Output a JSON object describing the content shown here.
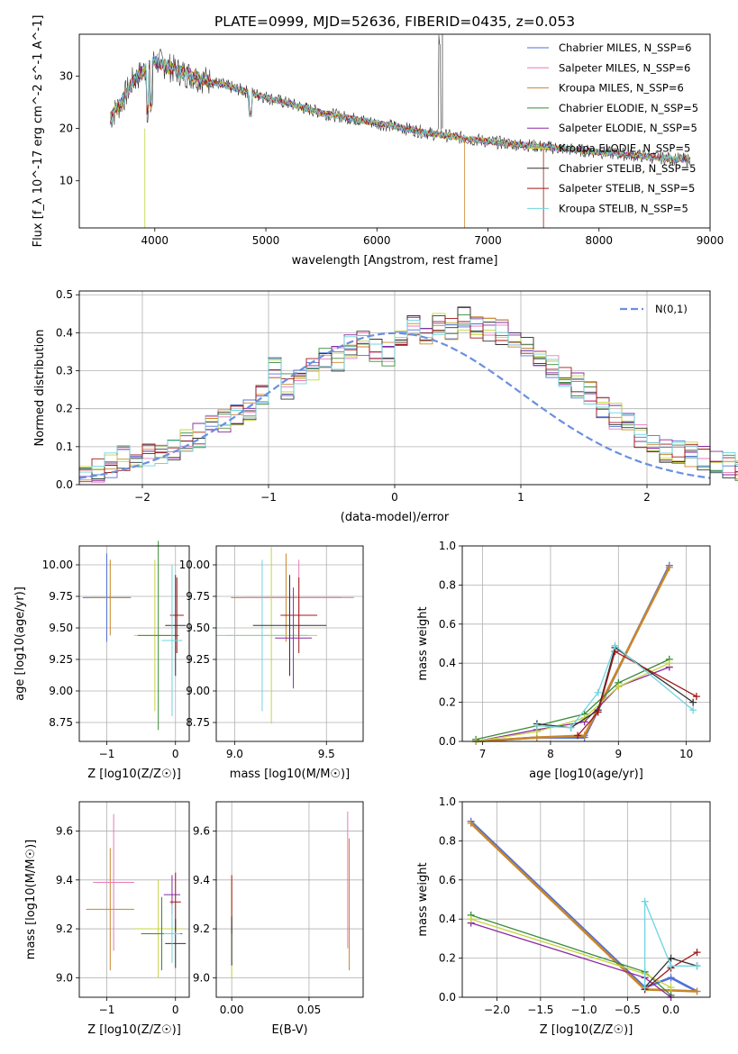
{
  "title": "PLATE=0999, MJD=52636, FIBERID=0435, z=0.053",
  "legend_labels": [
    "Chabrier MILES, N_SSP=6",
    "Salpeter MILES, N_SSP=6",
    "Kroupa MILES, N_SSP=6",
    "Chabrier ELODIE, N_SSP=5",
    "Salpeter ELODIE, N_SSP=5",
    "Kroupa ELODIE, N_SSP=5",
    "Chabrier STELIB, N_SSP=5",
    "Salpeter STELIB, N_SSP=5",
    "Kroupa STELIB, N_SSP=5"
  ],
  "colors": [
    "#4f72d8",
    "#e87ab8",
    "#c9862a",
    "#3a8a3a",
    "#8a2aa0",
    "#c4d440",
    "#333333",
    "#a01818",
    "#6fd4e0"
  ],
  "chart_data": [
    {
      "type": "line",
      "panel": "spectrum",
      "xlabel": "wavelength [Angstrom, rest frame]",
      "ylabel": "Flux [f_λ 10^-17 erg cm^-2 s^-1 A^-1]",
      "xlim": [
        3320,
        9000
      ],
      "ylim": [
        1,
        38
      ],
      "xticks": [
        "4000",
        "5000",
        "6000",
        "7000",
        "8000",
        "9000"
      ],
      "yticks": [
        "10",
        "20",
        "30"
      ],
      "continuum_x": [
        3600,
        3700,
        3800,
        3900,
        4000,
        4200,
        4500,
        5000,
        5500,
        6000,
        6500,
        7000,
        7500,
        8000,
        8500,
        8800
      ],
      "continuum_y": [
        22,
        25,
        29,
        31,
        33,
        31,
        29,
        26,
        23,
        21,
        19,
        17.5,
        16.5,
        15.5,
        14.5,
        14
      ]
    },
    {
      "type": "line",
      "panel": "residual-histogram",
      "xlabel": "(data-model)/error",
      "ylabel": "Normed distribution",
      "xlim": [
        -2.5,
        2.5
      ],
      "ylim": [
        0,
        0.51
      ],
      "xticks": [
        "−2",
        "−1",
        "0",
        "1",
        "2"
      ],
      "yticks": [
        "0.0",
        "0.1",
        "0.2",
        "0.3",
        "0.4",
        "0.5"
      ],
      "gaussian_label": "N(0,1)",
      "bin_width": 0.1,
      "bin_values": [
        0.03,
        0.04,
        0.05,
        0.07,
        0.07,
        0.08,
        0.09,
        0.1,
        0.12,
        0.13,
        0.16,
        0.17,
        0.19,
        0.2,
        0.23,
        0.3,
        0.26,
        0.27,
        0.3,
        0.33,
        0.33,
        0.36,
        0.37,
        0.35,
        0.34,
        0.4,
        0.41,
        0.4,
        0.42,
        0.41,
        0.44,
        0.42,
        0.41,
        0.4,
        0.37,
        0.36,
        0.34,
        0.31,
        0.28,
        0.26,
        0.24,
        0.21,
        0.18,
        0.16,
        0.13,
        0.11,
        0.09,
        0.08,
        0.08,
        0.07,
        0.06,
        0.05,
        0.04,
        0.03,
        0.03
      ]
    },
    {
      "type": "scatter",
      "panel": "age-vs-Z",
      "xlabel": "Z [log10(Z/Z☉)]",
      "ylabel": "age [log10(age/yr)]",
      "xlim": [
        -1.4,
        0.2
      ],
      "ylim": [
        8.6,
        10.15
      ],
      "xticks": [
        "−1",
        "0"
      ],
      "yticks": [
        "8.75",
        "9.00",
        "9.25",
        "9.50",
        "9.75",
        "10.00"
      ],
      "points": [
        {
          "x": -1.0,
          "y": 9.74,
          "xerr": 0.35,
          "yerr": 0.35,
          "color": 0
        },
        {
          "x": -0.95,
          "y": 9.74,
          "xerr": 0.3,
          "yerr": 0.3,
          "color": 2
        },
        {
          "x": -0.3,
          "y": 9.44,
          "xerr": 0.3,
          "yerr": 0.6,
          "color": 5
        },
        {
          "x": -0.25,
          "y": 9.44,
          "xerr": 0.3,
          "yerr": 0.75,
          "color": 3
        },
        {
          "x": 0.0,
          "y": 9.52,
          "xerr": 0.15,
          "yerr": 0.4,
          "color": 6
        },
        {
          "x": 0.02,
          "y": 9.6,
          "xerr": 0.1,
          "yerr": 0.3,
          "color": 7
        },
        {
          "x": -0.05,
          "y": 9.4,
          "xerr": 0.15,
          "yerr": 0.6,
          "color": 8
        }
      ]
    },
    {
      "type": "scatter",
      "panel": "age-vs-mass",
      "xlabel": "mass [log10(M/M☉)]",
      "ylabel": "",
      "xlim": [
        8.9,
        9.7
      ],
      "ylim": [
        8.6,
        10.15
      ],
      "xticks": [
        "9.0",
        "9.5"
      ],
      "yticks": [
        "8.75",
        "9.00",
        "9.25",
        "9.50",
        "9.75",
        "10.00"
      ],
      "points": [
        {
          "x": 9.28,
          "y": 9.74,
          "xerr": 0.3,
          "yerr": 0.35,
          "color": 2
        },
        {
          "x": 9.35,
          "y": 9.74,
          "xerr": 0.3,
          "yerr": 0.3,
          "color": 1
        },
        {
          "x": 9.2,
          "y": 9.44,
          "xerr": 0.25,
          "yerr": 0.7,
          "color": 5
        },
        {
          "x": 9.15,
          "y": 9.44,
          "xerr": 0.25,
          "yerr": 0.6,
          "color": 8
        },
        {
          "x": 9.3,
          "y": 9.52,
          "xerr": 0.2,
          "yerr": 0.4,
          "color": 6
        },
        {
          "x": 9.35,
          "y": 9.6,
          "xerr": 0.1,
          "yerr": 0.3,
          "color": 7
        },
        {
          "x": 9.32,
          "y": 9.42,
          "xerr": 0.1,
          "yerr": 0.4,
          "color": 4
        }
      ]
    },
    {
      "type": "line",
      "panel": "mass-weight-vs-age",
      "xlabel": "age [log10(age/yr)]",
      "ylabel": "mass weight",
      "xlim": [
        6.7,
        10.35
      ],
      "ylim": [
        0,
        1.0
      ],
      "xticks": [
        "7",
        "8",
        "9",
        "10"
      ],
      "yticks": [
        "0.0",
        "0.2",
        "0.4",
        "0.6",
        "0.8",
        "1.0"
      ],
      "series": [
        {
          "color": 0,
          "x": [
            6.9,
            7.8,
            8.5,
            9.75
          ],
          "y": [
            0.0,
            0.02,
            0.02,
            0.9
          ]
        },
        {
          "color": 2,
          "x": [
            6.9,
            7.8,
            8.5,
            9.75
          ],
          "y": [
            0.0,
            0.02,
            0.03,
            0.89
          ]
        },
        {
          "color": 3,
          "x": [
            6.9,
            7.8,
            8.5,
            9.0,
            9.75
          ],
          "y": [
            0.01,
            0.08,
            0.14,
            0.3,
            0.42
          ]
        },
        {
          "color": 4,
          "x": [
            6.9,
            7.8,
            8.5,
            9.0,
            9.75
          ],
          "y": [
            0.0,
            0.06,
            0.1,
            0.28,
            0.38
          ]
        },
        {
          "color": 5,
          "x": [
            6.9,
            7.8,
            8.5,
            9.0,
            9.75
          ],
          "y": [
            0.0,
            0.05,
            0.12,
            0.28,
            0.4
          ]
        },
        {
          "color": 6,
          "x": [
            7.8,
            8.3,
            8.7,
            8.95,
            10.1
          ],
          "y": [
            0.09,
            0.07,
            0.16,
            0.48,
            0.2
          ]
        },
        {
          "color": 7,
          "x": [
            8.4,
            8.7,
            8.95,
            10.15
          ],
          "y": [
            0.03,
            0.15,
            0.46,
            0.23
          ]
        },
        {
          "color": 8,
          "x": [
            7.8,
            8.3,
            8.7,
            8.95,
            10.1
          ],
          "y": [
            0.08,
            0.07,
            0.25,
            0.49,
            0.16
          ]
        }
      ]
    },
    {
      "type": "scatter",
      "panel": "mass-vs-Z",
      "xlabel": "Z [log10(Z/Z☉)]",
      "ylabel": "mass [log10(M/M☉)]",
      "xlim": [
        -1.4,
        0.2
      ],
      "ylim": [
        8.92,
        9.72
      ],
      "xticks": [
        "−1",
        "0"
      ],
      "yticks": [
        "9.0",
        "9.2",
        "9.4",
        "9.6"
      ],
      "points": [
        {
          "x": -0.95,
          "y": 9.28,
          "xerr": 0.35,
          "yerr": 0.25,
          "color": 2
        },
        {
          "x": -0.9,
          "y": 9.39,
          "xerr": 0.3,
          "yerr": 0.28,
          "color": 1
        },
        {
          "x": -0.25,
          "y": 9.2,
          "xerr": 0.35,
          "yerr": 0.2,
          "color": 5
        },
        {
          "x": -0.2,
          "y": 9.18,
          "xerr": 0.3,
          "yerr": 0.15,
          "color": 3
        },
        {
          "x": -0.05,
          "y": 9.34,
          "xerr": 0.12,
          "yerr": 0.08,
          "color": 4
        },
        {
          "x": 0.0,
          "y": 9.31,
          "xerr": 0.08,
          "yerr": 0.12,
          "color": 7
        },
        {
          "x": 0.0,
          "y": 9.14,
          "xerr": 0.15,
          "yerr": 0.1,
          "color": 6
        },
        {
          "x": -0.05,
          "y": 9.18,
          "xerr": 0.12,
          "yerr": 0.12,
          "color": 8
        }
      ]
    },
    {
      "type": "scatter",
      "panel": "mass-vs-EBV",
      "xlabel": "E(B-V)",
      "ylabel": "",
      "xlim": [
        -0.01,
        0.085
      ],
      "ylim": [
        8.92,
        9.72
      ],
      "xticks": [
        "0.00",
        "0.05"
      ],
      "yticks": [
        "9.0",
        "9.2",
        "9.4",
        "9.6"
      ],
      "points": [
        {
          "x": 0.0,
          "y": 9.2,
          "yerr": 0.2,
          "color": 5
        },
        {
          "x": 0.0,
          "y": 9.3,
          "yerr": 0.12,
          "color": 7
        },
        {
          "x": 0.0,
          "y": 9.15,
          "yerr": 0.1,
          "color": 6
        },
        {
          "x": 0.075,
          "y": 9.4,
          "yerr": 0.28,
          "color": 1
        },
        {
          "x": 0.076,
          "y": 9.3,
          "yerr": 0.27,
          "color": 2
        }
      ]
    },
    {
      "type": "line",
      "panel": "mass-weight-vs-Z",
      "xlabel": "Z [log10(Z/Z☉)]",
      "ylabel": "mass weight",
      "xlim": [
        -2.4,
        0.45
      ],
      "ylim": [
        0,
        1.0
      ],
      "xticks": [
        "−2.0",
        "−1.5",
        "−1.0",
        "−0.5",
        "0.0"
      ],
      "yticks": [
        "0.0",
        "0.2",
        "0.4",
        "0.6",
        "0.8",
        "1.0"
      ],
      "series": [
        {
          "color": 0,
          "x": [
            -2.3,
            -0.3,
            0.0,
            0.3
          ],
          "y": [
            0.9,
            0.05,
            0.1,
            0.03
          ]
        },
        {
          "color": 2,
          "x": [
            -2.3,
            -0.3,
            0.3
          ],
          "y": [
            0.89,
            0.04,
            0.03
          ]
        },
        {
          "color": 3,
          "x": [
            -2.3,
            -0.3,
            0.0
          ],
          "y": [
            0.42,
            0.13,
            0.01
          ]
        },
        {
          "color": 4,
          "x": [
            -2.3,
            -0.3,
            0.0
          ],
          "y": [
            0.38,
            0.1,
            0.0
          ]
        },
        {
          "color": 5,
          "x": [
            -2.3,
            -0.3,
            0.0
          ],
          "y": [
            0.4,
            0.12,
            0.05
          ]
        },
        {
          "color": 6,
          "x": [
            -0.3,
            0.0,
            0.3
          ],
          "y": [
            0.05,
            0.2,
            0.16
          ]
        },
        {
          "color": 7,
          "x": [
            -0.3,
            0.0,
            0.3
          ],
          "y": [
            0.04,
            0.15,
            0.23
          ]
        },
        {
          "color": 8,
          "x": [
            -0.3,
            -0.3,
            0.0,
            0.3
          ],
          "y": [
            0.05,
            0.49,
            0.16,
            0.16
          ]
        }
      ]
    }
  ]
}
